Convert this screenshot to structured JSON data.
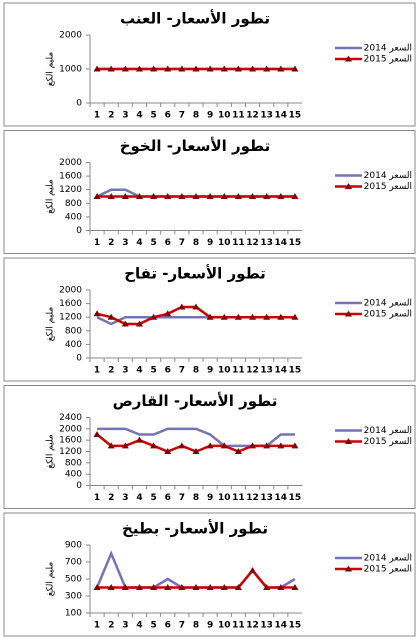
{
  "chart_data": [
    {
      "type": "line",
      "title": "تطور الأسعار- العنب",
      "y_label": "مليم الكغ",
      "categories": [
        1,
        2,
        3,
        4,
        5,
        6,
        7,
        8,
        9,
        10,
        11,
        12,
        13,
        14,
        15
      ],
      "ylim": [
        0,
        2000
      ],
      "yticks": [
        0,
        1000,
        2000
      ],
      "series": [
        {
          "name": "السعر 2014",
          "color": "#7474b4",
          "values": [
            1000,
            1000,
            1000,
            1000,
            1000,
            1000,
            1000,
            1000,
            1000,
            1000,
            1000,
            1000,
            1000,
            1000,
            1000
          ]
        },
        {
          "name": "السعر 2015",
          "color": "#cc0000",
          "marker": "triangle",
          "values": [
            1000,
            1000,
            1000,
            1000,
            1000,
            1000,
            1000,
            1000,
            1000,
            1000,
            1000,
            1000,
            1000,
            1000,
            1000
          ]
        }
      ]
    },
    {
      "type": "line",
      "title": "تطور الأسعار- الخوخ",
      "y_label": "مليم الكغ",
      "categories": [
        1,
        2,
        3,
        4,
        5,
        6,
        7,
        8,
        9,
        10,
        11,
        12,
        13,
        14,
        15
      ],
      "ylim": [
        0,
        2000
      ],
      "yticks": [
        0,
        400,
        800,
        1200,
        1600,
        2000
      ],
      "series": [
        {
          "name": "السعر 2014",
          "color": "#7474b4",
          "values": [
            1000,
            1200,
            1200,
            1000,
            1000,
            1000,
            1000,
            1000,
            1000,
            1000,
            1000,
            1000,
            1000,
            1000,
            1000
          ]
        },
        {
          "name": "السعر 2015",
          "color": "#cc0000",
          "marker": "triangle",
          "values": [
            1000,
            1000,
            1000,
            1000,
            1000,
            1000,
            1000,
            1000,
            1000,
            1000,
            1000,
            1000,
            1000,
            1000,
            1000
          ]
        }
      ]
    },
    {
      "type": "line",
      "title": "تطور الأسعار- تفاح",
      "y_label": "مليم الكغ",
      "categories": [
        1,
        2,
        3,
        4,
        5,
        6,
        7,
        8,
        9,
        10,
        11,
        12,
        13,
        14,
        15
      ],
      "ylim": [
        0,
        2000
      ],
      "yticks": [
        0,
        400,
        800,
        1200,
        1600,
        2000
      ],
      "series": [
        {
          "name": "السعر 2014",
          "color": "#7474b4",
          "values": [
            1200,
            1000,
            1200,
            1200,
            1200,
            1200,
            1200,
            1200,
            1200,
            1200,
            1200,
            1200,
            1200,
            1200,
            1200
          ]
        },
        {
          "name": "السعر 2015",
          "color": "#cc0000",
          "marker": "triangle",
          "values": [
            1300,
            1200,
            1000,
            1000,
            1200,
            1300,
            1500,
            1500,
            1200,
            1200,
            1200,
            1200,
            1200,
            1200,
            1200
          ]
        }
      ]
    },
    {
      "type": "line",
      "title": "تطور الأسعار- القارص",
      "y_label": "مليم الكغ",
      "categories": [
        1,
        2,
        3,
        4,
        5,
        6,
        7,
        8,
        9,
        10,
        11,
        12,
        13,
        14,
        15
      ],
      "ylim": [
        0,
        2400
      ],
      "yticks": [
        0,
        400,
        800,
        1200,
        1600,
        2000,
        2400
      ],
      "series": [
        {
          "name": "السعر 2014",
          "color": "#7474b4",
          "values": [
            2000,
            2000,
            2000,
            1800,
            1800,
            2000,
            2000,
            2000,
            1800,
            1400,
            1400,
            1400,
            1400,
            1800,
            1800
          ]
        },
        {
          "name": "السعر 2015",
          "color": "#cc0000",
          "marker": "triangle",
          "values": [
            1800,
            1400,
            1400,
            1600,
            1400,
            1200,
            1400,
            1200,
            1400,
            1400,
            1200,
            1400,
            1400,
            1400,
            1400
          ]
        }
      ]
    },
    {
      "type": "line",
      "title": "تطور الأسعار- بطيخ",
      "y_label": "مليم الكغ",
      "categories": [
        1,
        2,
        3,
        4,
        5,
        6,
        7,
        8,
        9,
        10,
        11,
        12,
        13,
        14,
        15
      ],
      "ylim": [
        100,
        900
      ],
      "yticks": [
        100,
        300,
        500,
        700,
        900
      ],
      "series": [
        {
          "name": "السعر 2014",
          "color": "#7474b4",
          "values": [
            400,
            800,
            400,
            400,
            400,
            500,
            400,
            400,
            400,
            400,
            400,
            600,
            400,
            400,
            500
          ]
        },
        {
          "name": "السعر 2015",
          "color": "#cc0000",
          "marker": "triangle",
          "values": [
            400,
            400,
            400,
            400,
            400,
            400,
            400,
            400,
            400,
            400,
            400,
            600,
            400,
            400,
            400
          ]
        }
      ]
    }
  ]
}
